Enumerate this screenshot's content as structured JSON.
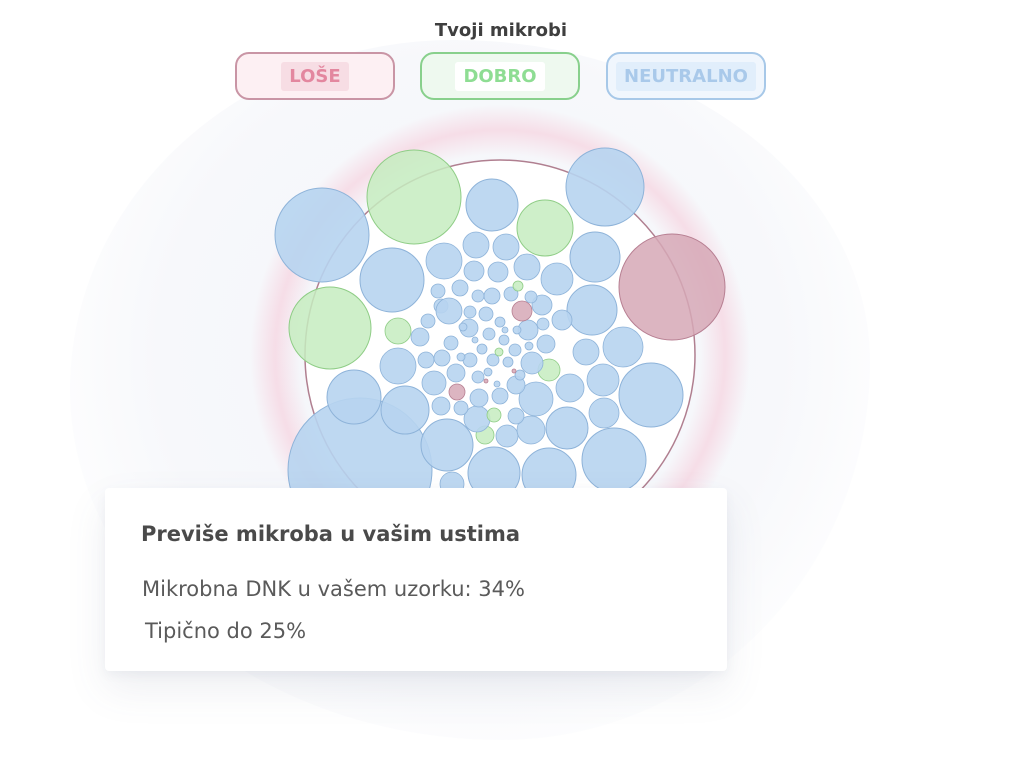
{
  "header": {
    "title": "Tvoji mikrobi"
  },
  "filters": [
    {
      "key": "bad",
      "label": "LOŠE",
      "color": "#e3879f"
    },
    {
      "key": "good",
      "label": "DOBRO",
      "color": "#8edd93"
    },
    {
      "key": "neutral",
      "label": "NEUTRALNO",
      "color": "#a9c9ea"
    }
  ],
  "colors": {
    "neutral_fill": "#b7d4f0",
    "neutral_stroke": "#8eb3d9",
    "good_fill": "#c5ecbf",
    "good_stroke": "#8fcd86",
    "bad_fill": "#d6a8b6",
    "bad_stroke": "#b77f92",
    "glow": "#f6c8d7",
    "frame_stroke": "#b07f90"
  },
  "card": {
    "title": "Previše mikroba u vašim ustima",
    "line1": "Mikrobna DNK u vašem uzorku: 34%",
    "line2": "Tipično do 25%"
  }
}
